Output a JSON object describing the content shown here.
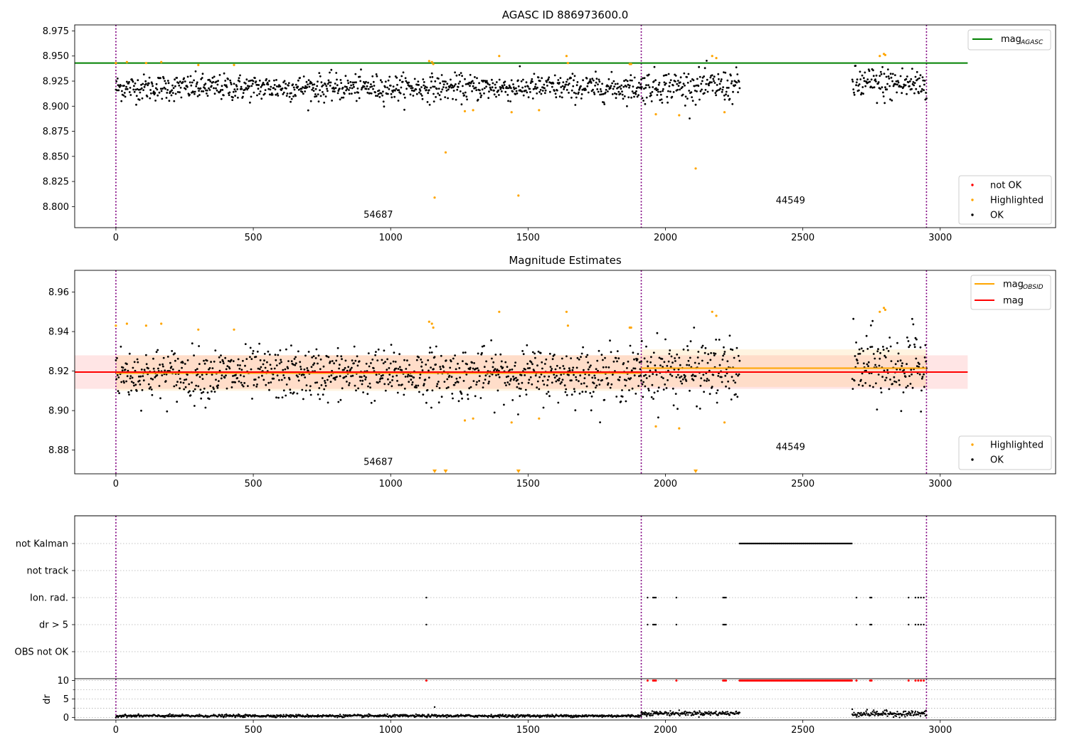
{
  "chart_data": [
    {
      "type": "scatter",
      "title": "AGASC ID 886973600.0",
      "xlabel": "",
      "ylabel": "",
      "xlim": [
        -150,
        3420
      ],
      "ylim": [
        8.779,
        8.981
      ],
      "xticks": [
        0,
        500,
        1000,
        1500,
        2000,
        2500,
        3000
      ],
      "yticks": [
        8.8,
        8.825,
        8.85,
        8.875,
        8.9,
        8.925,
        8.95,
        8.975
      ],
      "ytick_labels": [
        "8.800",
        "8.825",
        "8.850",
        "8.875",
        "8.900",
        "8.925",
        "8.950",
        "8.975"
      ],
      "vlines": [
        0,
        1912,
        2950
      ],
      "obsid_labels": [
        {
          "text": "54687",
          "x": 955,
          "y": 8.789
        },
        {
          "text": "44549",
          "x": 2455,
          "y": 8.803
        }
      ],
      "hline": {
        "name": "mag_AGASC",
        "value": 8.943,
        "x": [
          -150,
          3100
        ],
        "color": "#008000"
      },
      "ok_segments": [
        {
          "x": [
            0,
            1912
          ],
          "mean": 8.9185,
          "spread": 0.0065
        },
        {
          "x": [
            1912,
            2270
          ],
          "mean": 8.92,
          "spread": 0.008
        },
        {
          "x": [
            2680,
            2950
          ],
          "mean": 8.922,
          "spread": 0.009
        }
      ],
      "highlighted": [
        [
          0,
          8.943
        ],
        [
          40,
          8.944
        ],
        [
          110,
          8.943
        ],
        [
          165,
          8.944
        ],
        [
          300,
          8.941
        ],
        [
          430,
          8.941
        ],
        [
          1140,
          8.945
        ],
        [
          1150,
          8.944
        ],
        [
          1155,
          8.942
        ],
        [
          1160,
          8.809
        ],
        [
          1200,
          8.854
        ],
        [
          1270,
          8.895
        ],
        [
          1300,
          8.896
        ],
        [
          1395,
          8.95
        ],
        [
          1440,
          8.894
        ],
        [
          1465,
          8.811
        ],
        [
          1540,
          8.896
        ],
        [
          1640,
          8.95
        ],
        [
          1645,
          8.943
        ],
        [
          1870,
          8.942
        ],
        [
          1875,
          8.942
        ],
        [
          1965,
          8.892
        ],
        [
          2050,
          8.891
        ],
        [
          2110,
          8.838
        ],
        [
          2170,
          8.95
        ],
        [
          2185,
          8.948
        ],
        [
          2215,
          8.894
        ],
        [
          2780,
          8.95
        ],
        [
          2795,
          8.952
        ],
        [
          2800,
          8.951
        ]
      ],
      "not_ok": [],
      "legend_lines": [
        {
          "label": "mag",
          "sub": "AGASC",
          "color": "#008000"
        }
      ],
      "legend_points": [
        {
          "label": "not OK",
          "color": "#ff0000"
        },
        {
          "label": "Highlighted",
          "color": "#ffa500"
        },
        {
          "label": "OK",
          "color": "#000000"
        }
      ]
    },
    {
      "type": "scatter",
      "title": "Magnitude Estimates",
      "xlabel": "",
      "ylabel": "",
      "xlim": [
        -150,
        3420
      ],
      "ylim": [
        8.868,
        8.971
      ],
      "xticks": [
        0,
        500,
        1000,
        1500,
        2000,
        2500,
        3000
      ],
      "yticks": [
        8.88,
        8.9,
        8.92,
        8.94,
        8.96
      ],
      "ytick_labels": [
        "8.88",
        "8.90",
        "8.92",
        "8.94",
        "8.96"
      ],
      "vlines": [
        0,
        1912,
        2950
      ],
      "obsid_labels": [
        {
          "text": "54687",
          "x": 955,
          "y": 8.8725
        },
        {
          "text": "44549",
          "x": 2455,
          "y": 8.88
        }
      ],
      "mag": {
        "value": 8.9195,
        "band": [
          8.911,
          8.928
        ],
        "x": [
          -150,
          3100
        ],
        "color": "#ff0000"
      },
      "mag_obsid": [
        {
          "x": [
            0,
            1912
          ],
          "value": 8.919,
          "band": [
            8.91,
            8.928
          ]
        },
        {
          "x": [
            1912,
            2950
          ],
          "value": 8.9215,
          "band": [
            8.912,
            8.931
          ]
        }
      ],
      "ok_segments": [
        {
          "x": [
            0,
            1912
          ],
          "mean": 8.9185,
          "spread": 0.0065
        },
        {
          "x": [
            1912,
            2270
          ],
          "mean": 8.92,
          "spread": 0.008
        },
        {
          "x": [
            2680,
            2950
          ],
          "mean": 8.922,
          "spread": 0.009
        }
      ],
      "highlighted": [
        [
          0,
          8.943
        ],
        [
          40,
          8.944
        ],
        [
          110,
          8.943
        ],
        [
          165,
          8.944
        ],
        [
          300,
          8.941
        ],
        [
          430,
          8.941
        ],
        [
          1140,
          8.945
        ],
        [
          1150,
          8.944
        ],
        [
          1155,
          8.942
        ],
        [
          1270,
          8.895
        ],
        [
          1300,
          8.896
        ],
        [
          1395,
          8.95
        ],
        [
          1440,
          8.894
        ],
        [
          1540,
          8.896
        ],
        [
          1640,
          8.95
        ],
        [
          1645,
          8.943
        ],
        [
          1870,
          8.942
        ],
        [
          1875,
          8.942
        ],
        [
          1965,
          8.892
        ],
        [
          2050,
          8.891
        ],
        [
          2170,
          8.95
        ],
        [
          2185,
          8.948
        ],
        [
          2215,
          8.894
        ],
        [
          2780,
          8.95
        ],
        [
          2795,
          8.952
        ],
        [
          2800,
          8.951
        ]
      ],
      "off_scale_low_x": [
        1160,
        1200,
        1465,
        2110
      ],
      "legend_lines": [
        {
          "label": "mag",
          "sub": "OBSID",
          "color": "#ffa500"
        },
        {
          "label": "mag",
          "sub": "",
          "color": "#ff0000"
        }
      ],
      "legend_points": [
        {
          "label": "Highlighted",
          "color": "#ffa500"
        },
        {
          "label": "OK",
          "color": "#000000"
        }
      ]
    },
    {
      "type": "scatter",
      "title": "",
      "xlabel": "",
      "ylabel": "",
      "xlim": [
        -150,
        3420
      ],
      "categories": [
        "not Kalman",
        "not track",
        "Ion. rad.",
        "dr > 5",
        "OBS not OK"
      ],
      "vlines": [
        0,
        1912,
        2950
      ],
      "flags": {
        "not Kalman": {
          "ranges": [
            [
              2270,
              2680
            ]
          ],
          "points": []
        },
        "not track": {
          "ranges": [],
          "points": []
        },
        "Ion. rad.": {
          "ranges": [],
          "points": [
            1130,
            1935,
            1955,
            1960,
            1965,
            2040,
            2210,
            2215,
            2220,
            2695,
            2745,
            2750,
            2885,
            2910,
            2920,
            2930,
            2940
          ]
        },
        "dr > 5": {
          "ranges": [],
          "points": [
            1130,
            1935,
            1955,
            1960,
            1965,
            2040,
            2210,
            2215,
            2220,
            2695,
            2745,
            2750,
            2885,
            2910,
            2920,
            2930,
            2940
          ]
        },
        "OBS not OK": {
          "ranges": [],
          "points": []
        }
      }
    },
    {
      "type": "line",
      "title": "",
      "xlabel": "",
      "ylabel": "dr",
      "xlim": [
        -150,
        3420
      ],
      "ylim": [
        -0.7,
        10.5
      ],
      "xticks": [
        0,
        500,
        1000,
        1500,
        2000,
        2500,
        3000
      ],
      "yticks": [
        0,
        5,
        10
      ],
      "ytick_labels": [
        "0",
        "5",
        "10"
      ],
      "vlines": [
        0,
        1912,
        2950
      ],
      "segments": [
        {
          "x": [
            0,
            1912
          ],
          "base": 0.4,
          "amp": 0.35
        },
        {
          "x": [
            1912,
            2270
          ],
          "base": 1.1,
          "amp": 0.6
        },
        {
          "x": [
            2680,
            2950
          ],
          "base": 1.0,
          "amp": 0.8
        }
      ],
      "clipped_at_10": {
        "ranges": [
          [
            2270,
            2680
          ]
        ],
        "points": [
          1130,
          1935,
          1955,
          1960,
          1965,
          2040,
          2210,
          2215,
          2220,
          2695,
          2745,
          2750,
          2885,
          2910,
          2920,
          2930,
          2940
        ]
      },
      "spikes": [
        [
          1160,
          2.8
        ],
        [
          2680,
          2.2
        ]
      ]
    }
  ]
}
